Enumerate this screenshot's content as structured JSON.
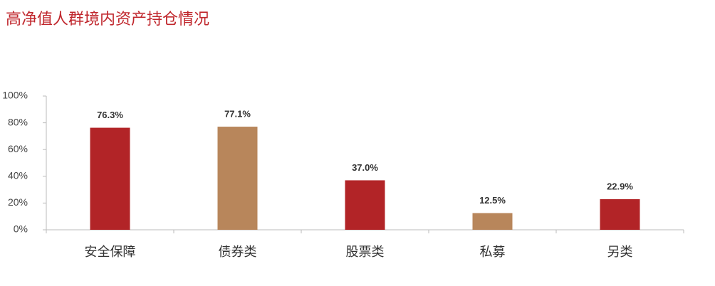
{
  "chart_data": {
    "type": "bar",
    "title": "高净值人群境内资产持仓情况",
    "categories": [
      "安全保障",
      "债券类",
      "股票类",
      "私募",
      "另类"
    ],
    "values": [
      76.3,
      77.1,
      37.0,
      12.5,
      22.9
    ],
    "value_labels": [
      "76.3%",
      "77.1%",
      "37.0%",
      "12.5%",
      "22.9%"
    ],
    "colors": [
      "#b22427",
      "#b8865b",
      "#b22427",
      "#b8865b",
      "#b22427"
    ],
    "ylim": [
      0,
      100
    ],
    "yticks": [
      {
        "value": 0,
        "label": "0%"
      },
      {
        "value": 20,
        "label": "20%"
      },
      {
        "value": 40,
        "label": "40%"
      },
      {
        "value": 60,
        "label": "60%"
      },
      {
        "value": 80,
        "label": "80%"
      },
      {
        "value": 100,
        "label": "100%"
      }
    ],
    "grid": false
  }
}
